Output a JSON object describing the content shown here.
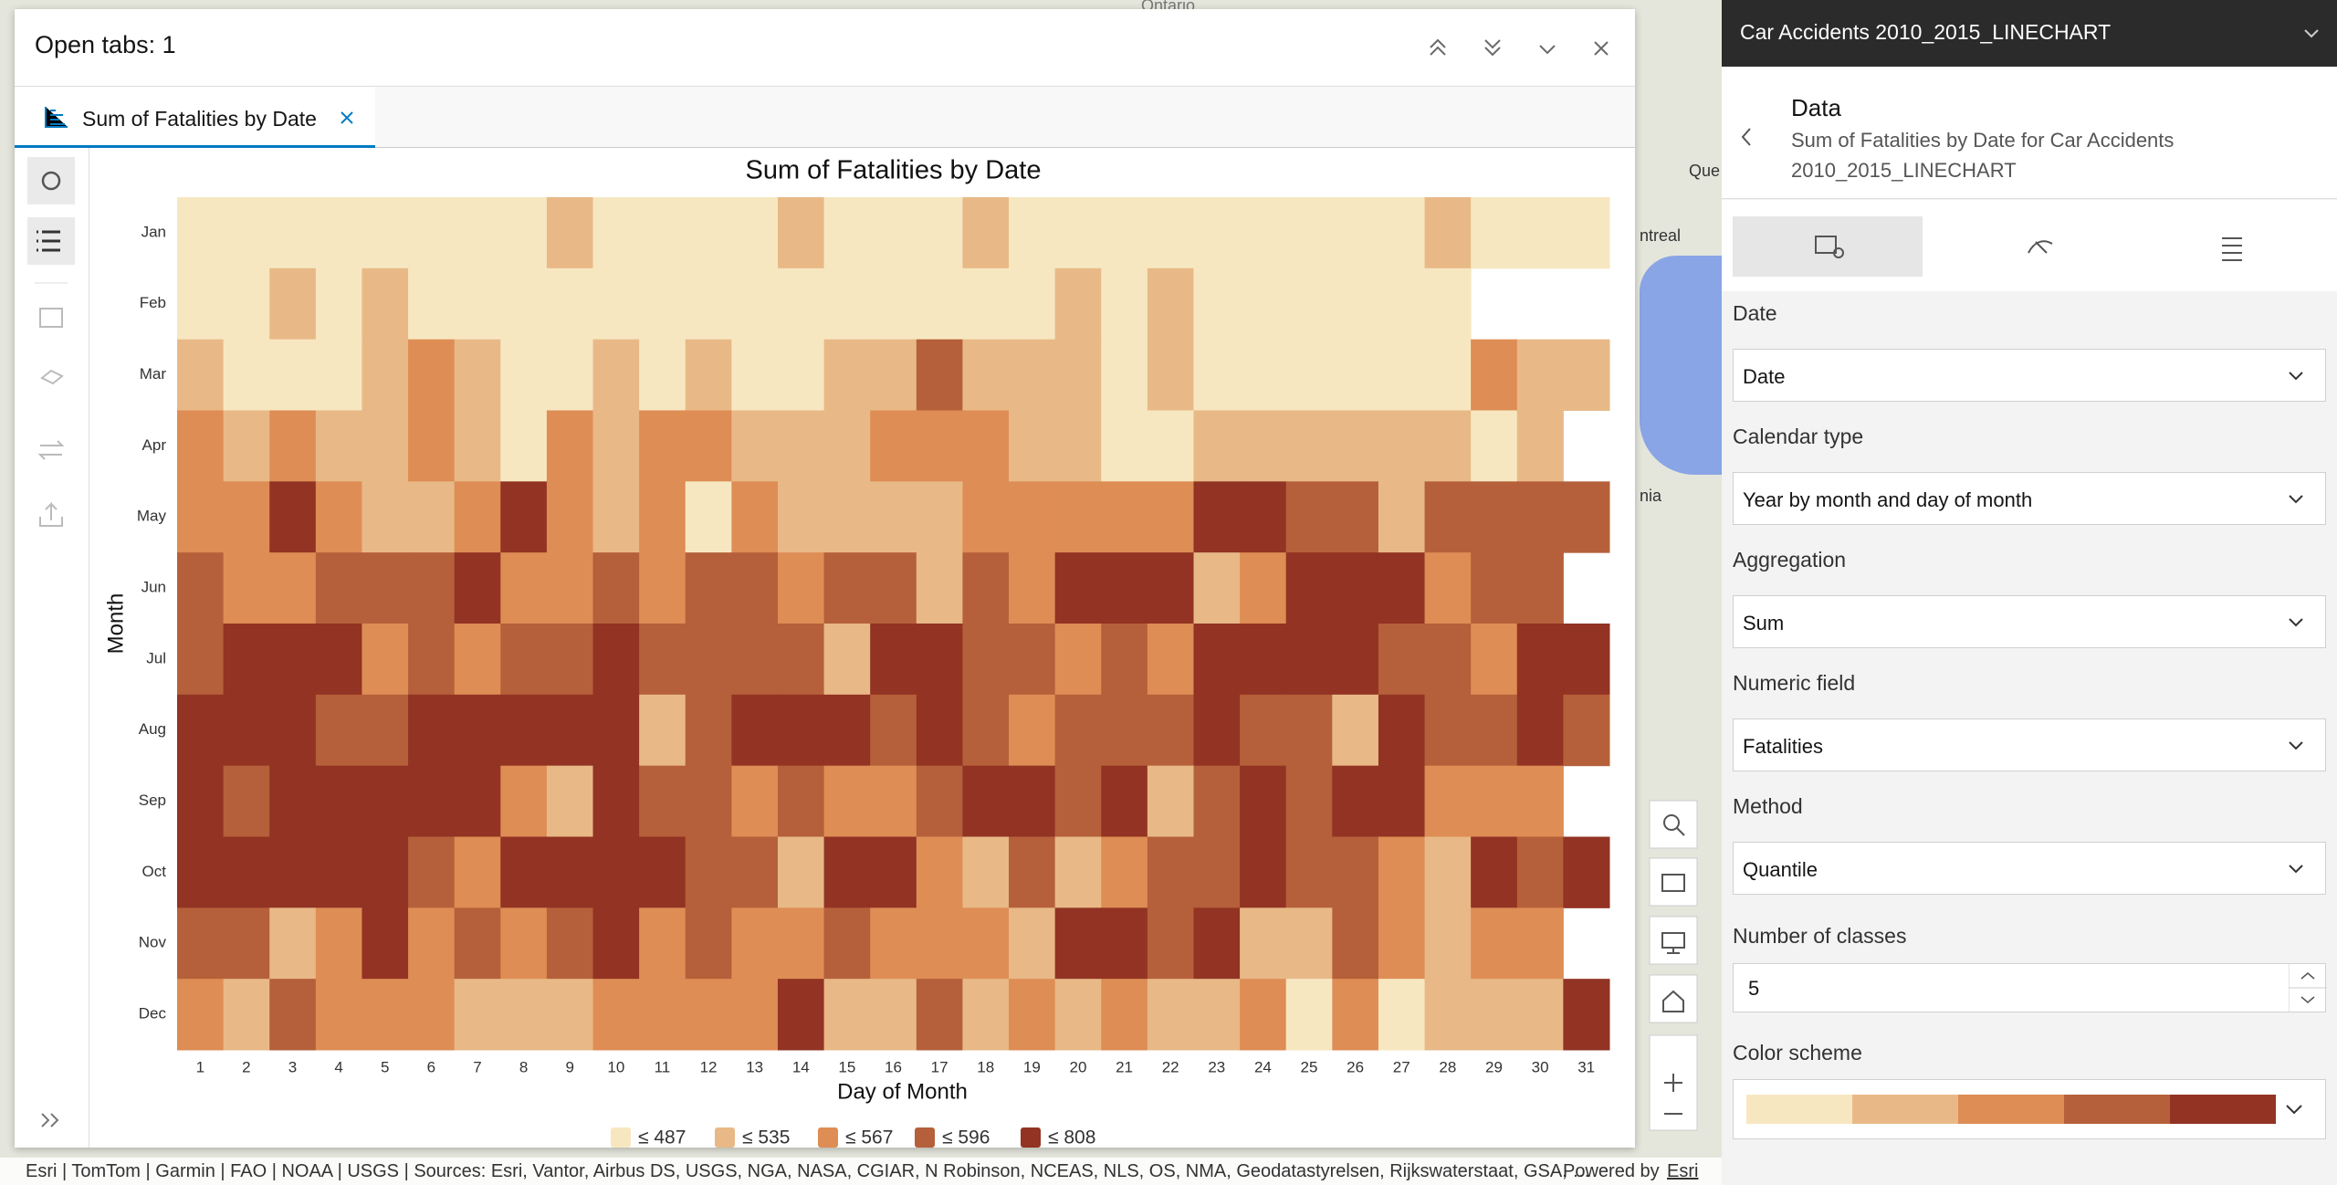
{
  "header": {
    "title": "Open tabs: 1"
  },
  "tabs": [
    {
      "label": "Sum of Fatalities by Date"
    }
  ],
  "chart_data": {
    "type": "heatmap",
    "title": "Sum of Fatalities by Date",
    "x_label": "Day of Month",
    "y_label": "Month",
    "x": [
      1,
      2,
      3,
      4,
      5,
      6,
      7,
      8,
      9,
      10,
      11,
      12,
      13,
      14,
      15,
      16,
      17,
      18,
      19,
      20,
      21,
      22,
      23,
      24,
      25,
      26,
      27,
      28,
      29,
      30,
      31
    ],
    "y_categories": [
      "Jan",
      "Feb",
      "Mar",
      "Apr",
      "May",
      "Jun",
      "Jul",
      "Aug",
      "Sep",
      "Oct",
      "Nov",
      "Dec"
    ],
    "values": [
      [
        460,
        460,
        460,
        460,
        460,
        460,
        460,
        460,
        515,
        460,
        460,
        460,
        460,
        515,
        460,
        460,
        460,
        515,
        460,
        460,
        460,
        460,
        460,
        460,
        460,
        460,
        460,
        515,
        460,
        460,
        460
      ],
      [
        460,
        460,
        515,
        460,
        515,
        460,
        460,
        460,
        460,
        460,
        460,
        460,
        460,
        460,
        460,
        460,
        460,
        460,
        460,
        515,
        460,
        515,
        460,
        460,
        460,
        460,
        460,
        460,
        null,
        null,
        null
      ],
      [
        515,
        460,
        460,
        460,
        515,
        552,
        515,
        460,
        460,
        515,
        460,
        515,
        460,
        460,
        515,
        515,
        582,
        515,
        515,
        515,
        460,
        515,
        460,
        460,
        460,
        460,
        460,
        460,
        552,
        515,
        515
      ],
      [
        552,
        515,
        552,
        515,
        515,
        552,
        515,
        460,
        552,
        515,
        552,
        552,
        515,
        515,
        515,
        552,
        552,
        552,
        515,
        515,
        460,
        460,
        515,
        515,
        515,
        515,
        515,
        515,
        460,
        515,
        null
      ],
      [
        552,
        552,
        640,
        552,
        515,
        515,
        552,
        640,
        552,
        515,
        552,
        460,
        552,
        515,
        515,
        515,
        515,
        552,
        552,
        552,
        552,
        552,
        640,
        640,
        582,
        582,
        515,
        582,
        582,
        582,
        582
      ],
      [
        582,
        552,
        552,
        582,
        582,
        582,
        640,
        552,
        552,
        582,
        552,
        582,
        582,
        552,
        582,
        582,
        515,
        582,
        552,
        640,
        640,
        640,
        515,
        552,
        640,
        640,
        640,
        552,
        582,
        582,
        null
      ],
      [
        582,
        640,
        640,
        640,
        552,
        582,
        552,
        582,
        582,
        640,
        582,
        582,
        582,
        582,
        515,
        640,
        640,
        582,
        582,
        552,
        582,
        552,
        640,
        640,
        640,
        640,
        582,
        582,
        552,
        640,
        640
      ],
      [
        640,
        640,
        640,
        582,
        582,
        640,
        640,
        640,
        640,
        640,
        515,
        582,
        640,
        640,
        640,
        582,
        640,
        582,
        552,
        582,
        582,
        582,
        640,
        582,
        582,
        515,
        640,
        582,
        582,
        640,
        582
      ],
      [
        640,
        582,
        640,
        640,
        640,
        640,
        640,
        552,
        515,
        640,
        582,
        582,
        552,
        582,
        552,
        552,
        582,
        640,
        640,
        582,
        640,
        515,
        582,
        640,
        582,
        640,
        640,
        552,
        552,
        552,
        null
      ],
      [
        640,
        640,
        640,
        640,
        640,
        582,
        552,
        640,
        640,
        640,
        640,
        582,
        582,
        515,
        640,
        640,
        552,
        515,
        582,
        515,
        552,
        582,
        582,
        640,
        582,
        582,
        552,
        515,
        640,
        582,
        640
      ],
      [
        582,
        582,
        515,
        552,
        640,
        552,
        582,
        552,
        582,
        640,
        552,
        582,
        552,
        552,
        582,
        552,
        552,
        552,
        515,
        640,
        640,
        582,
        640,
        515,
        515,
        582,
        552,
        515,
        552,
        552,
        null
      ],
      [
        552,
        515,
        582,
        552,
        552,
        552,
        515,
        515,
        515,
        552,
        552,
        552,
        552,
        640,
        515,
        515,
        582,
        515,
        552,
        515,
        552,
        515,
        515,
        552,
        460,
        552,
        460,
        515,
        515,
        515,
        640
      ]
    ],
    "classes": [
      {
        "value": 487,
        "label": "≤ 487",
        "color": "#f7e7c1"
      },
      {
        "value": 535,
        "label": "≤ 535",
        "color": "#e8b987"
      },
      {
        "value": 567,
        "label": "≤ 567",
        "color": "#de8d55"
      },
      {
        "value": 596,
        "label": "≤ 596",
        "color": "#b5603a"
      },
      {
        "value": 808,
        "label": "≤ 808",
        "color": "#923323"
      }
    ]
  },
  "panel": {
    "layer_title": "Car Accidents 2010_2015_LINECHART",
    "section": "Data",
    "description": "Sum of Fatalities by Date for Car Accidents 2010_2015_LINECHART",
    "fields": [
      {
        "label": "Date",
        "value": "Date"
      },
      {
        "label": "Calendar type",
        "value": "Year by month and day of month"
      },
      {
        "label": "Aggregation",
        "value": "Sum"
      },
      {
        "label": "Numeric field",
        "value": "Fatalities"
      },
      {
        "label": "Method",
        "value": "Quantile"
      }
    ],
    "classes_label": "Number of classes",
    "classes_value": 5,
    "color_scheme_label": "Color scheme"
  },
  "map": {
    "labels": [
      "Ontario",
      "Que",
      "ntreal",
      "nia"
    ],
    "attribution": "Esri | TomTom | Garmin | FAO | NOAA | USGS | Sources: Esri, Vantor, Airbus DS, USGS, NGA, NASA, CGIAR, N Robinson, NCEAS, NLS, OS, NMA, Geodatastyrelsen, Rijkswaterstaat, GSA, …",
    "powered_by": "Powered by",
    "esri": "Esri"
  }
}
